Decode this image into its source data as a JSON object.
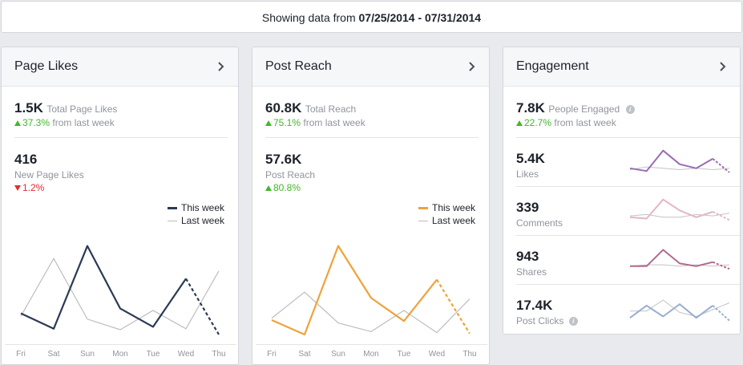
{
  "header": {
    "prefix": "Showing data from",
    "range": "07/25/2014 - 07/31/2014"
  },
  "days": [
    "Fri",
    "Sat",
    "Sun",
    "Mon",
    "Tue",
    "Wed",
    "Thu"
  ],
  "page_likes": {
    "title": "Page Likes",
    "total_value": "1.5K",
    "total_label": "Total Page Likes",
    "total_change": "37.3%",
    "total_change_suffix": "from last week",
    "new_value": "416",
    "new_label": "New Page Likes",
    "new_change": "1.2%",
    "legend_this": "This week",
    "legend_last": "Last week",
    "color_this": "#2b3a55",
    "color_last": "#bdbdbd"
  },
  "post_reach": {
    "title": "Post Reach",
    "total_value": "60.8K",
    "total_label": "Total Reach",
    "total_change": "75.1%",
    "total_change_suffix": "from last week",
    "reach_value": "57.6K",
    "reach_label": "Post Reach",
    "reach_change": "80.8%",
    "legend_this": "This week",
    "legend_last": "Last week",
    "color_this": "#f0a23a",
    "color_last": "#bdbdbd"
  },
  "engagement": {
    "title": "Engagement",
    "total_value": "7.8K",
    "total_label": "People Engaged",
    "total_change": "22.7%",
    "total_change_suffix": "from last week",
    "rows": [
      {
        "value": "5.4K",
        "label": "Likes",
        "color": "#9b6bb5"
      },
      {
        "value": "339",
        "label": "Comments",
        "color": "#e2b6c8"
      },
      {
        "value": "943",
        "label": "Shares",
        "color": "#b06a8c"
      },
      {
        "value": "17.4K",
        "label": "Post Clicks",
        "color": "#9aaed0"
      }
    ]
  },
  "chart_data": [
    {
      "type": "line",
      "x": [
        "Fri",
        "Sat",
        "Sun",
        "Mon",
        "Tue",
        "Wed",
        "Thu"
      ],
      "series": [
        {
          "name": "This week",
          "values": [
            0.22,
            0.06,
            0.92,
            0.27,
            0.08,
            0.58,
            0.0
          ],
          "dashed_last_segment": true
        },
        {
          "name": "Last week",
          "values": [
            0.19,
            0.79,
            0.16,
            0.05,
            0.25,
            0.06,
            0.66
          ]
        }
      ],
      "ylim": [
        0,
        1
      ]
    },
    {
      "type": "line",
      "x": [
        "Fri",
        "Sat",
        "Sun",
        "Mon",
        "Tue",
        "Wed",
        "Thu"
      ],
      "series": [
        {
          "name": "This week",
          "values": [
            0.15,
            0.0,
            0.92,
            0.38,
            0.14,
            0.57,
            0.01
          ],
          "dashed_last_segment": true
        },
        {
          "name": "Last week",
          "values": [
            0.17,
            0.44,
            0.12,
            0.03,
            0.25,
            0.02,
            0.37
          ]
        }
      ],
      "ylim": [
        0,
        1
      ]
    }
  ],
  "spark_data": [
    {
      "name": "Likes",
      "a": [
        0.3,
        0.2,
        0.95,
        0.45,
        0.3,
        0.65,
        0.15
      ],
      "b": [
        0.25,
        0.35,
        0.3,
        0.25,
        0.3,
        0.25,
        0.3
      ]
    },
    {
      "name": "Comments",
      "a": [
        0.3,
        0.25,
        0.95,
        0.55,
        0.3,
        0.5,
        0.2
      ],
      "b": [
        0.35,
        0.4,
        0.3,
        0.3,
        0.4,
        0.35,
        0.45
      ]
    },
    {
      "name": "Shares",
      "a": [
        0.3,
        0.3,
        0.9,
        0.4,
        0.3,
        0.45,
        0.2
      ],
      "b": [
        0.3,
        0.35,
        0.35,
        0.3,
        0.35,
        0.3,
        0.35
      ]
    },
    {
      "name": "Post Clicks",
      "a": [
        0.2,
        0.65,
        0.25,
        0.7,
        0.2,
        0.65,
        0.1
      ],
      "b": [
        0.45,
        0.45,
        0.85,
        0.4,
        0.25,
        0.5,
        0.75
      ]
    }
  ]
}
